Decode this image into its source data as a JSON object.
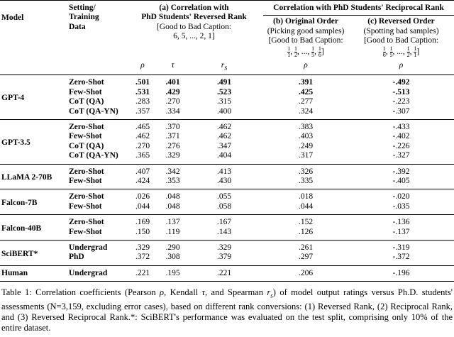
{
  "header": {
    "model": "Model",
    "setting": [
      "Setting/",
      "Training",
      "Data"
    ],
    "group_a": {
      "title": [
        "(a) Correlation with",
        "PhD Students' Reversed Rank"
      ],
      "bracket": "[Good to Bad Caption:",
      "sequence": "6, 5, ..., 2, 1]"
    },
    "group_reciprocal": "Correlation with PhD Students' Reciprocal Rank",
    "group_b": {
      "title": "(b) Original Order",
      "note": "(Picking good samples)",
      "bracket": "[Good to Bad Caption:",
      "fractions": [
        {
          "num": "1",
          "den": "1"
        },
        {
          "num": "1",
          "den": "2"
        },
        {
          "text": "..."
        },
        {
          "num": "1",
          "den": "5"
        },
        {
          "num": "1",
          "den": "6"
        }
      ],
      "close": "]"
    },
    "group_c": {
      "title": "(c) Reversed Order",
      "note": "(Spotting bad samples)",
      "bracket": "[Good to Bad Caption:",
      "fractions": [
        {
          "num": "1",
          "den": "6"
        },
        {
          "num": "1",
          "den": "5"
        },
        {
          "text": "..."
        },
        {
          "num": "1",
          "den": "2"
        },
        {
          "num": "1",
          "den": "1"
        }
      ],
      "close": "]"
    },
    "separator": ", ",
    "metrics": [
      {
        "symbol": "ρ"
      },
      {
        "symbol": "τ"
      },
      {
        "symbol": "r",
        "sub": "s"
      },
      {
        "symbol": "ρ"
      },
      {
        "symbol": "ρ"
      }
    ]
  },
  "groups": [
    {
      "model": "GPT-4",
      "rows": [
        {
          "setting": "Zero-Shot",
          "values": [
            ".501",
            ".401",
            ".491",
            ".391",
            "-.492"
          ],
          "bold": true
        },
        {
          "setting": "Few-Shot",
          "values": [
            ".531",
            ".429",
            ".523",
            ".425",
            "-.513"
          ],
          "bold": true
        },
        {
          "setting": "CoT (QA)",
          "values": [
            ".283",
            ".270",
            ".315",
            ".277",
            "-.223"
          ]
        },
        {
          "setting": "CoT (QA-YN)",
          "values": [
            ".357",
            ".334",
            ".400",
            ".324",
            "-.307"
          ]
        }
      ]
    },
    {
      "model": "GPT-3.5",
      "rows": [
        {
          "setting": "Zero-Shot",
          "values": [
            ".465",
            ".370",
            ".462",
            ".383",
            "-.433"
          ]
        },
        {
          "setting": "Few-Shot",
          "values": [
            ".462",
            ".371",
            ".462",
            ".403",
            "-.402"
          ]
        },
        {
          "setting": "CoT (QA)",
          "values": [
            ".270",
            ".276",
            ".347",
            ".249",
            "-.226"
          ]
        },
        {
          "setting": "CoT (QA-YN)",
          "values": [
            ".365",
            ".329",
            ".404",
            ".317",
            "-.327"
          ]
        }
      ]
    },
    {
      "model": "LLaMA 2-70B",
      "rows": [
        {
          "setting": "Zero-Shot",
          "values": [
            ".407",
            ".342",
            ".413",
            ".326",
            "-.392"
          ]
        },
        {
          "setting": "Few-Shot",
          "values": [
            ".424",
            ".353",
            ".430",
            ".335",
            "-.405"
          ]
        }
      ]
    },
    {
      "model": "Falcon-7B",
      "rows": [
        {
          "setting": "Zero-Shot",
          "values": [
            ".026",
            ".048",
            ".055",
            ".018",
            "-.020"
          ]
        },
        {
          "setting": "Few-Shot",
          "values": [
            ".044",
            ".048",
            ".058",
            ".044",
            "-.035"
          ]
        }
      ]
    },
    {
      "model": "Falcon-40B",
      "rows": [
        {
          "setting": "Zero-Shot",
          "values": [
            ".169",
            ".137",
            ".167",
            ".152",
            "-.136"
          ]
        },
        {
          "setting": "Few-Shot",
          "values": [
            ".150",
            ".119",
            ".143",
            ".126",
            "-.137"
          ]
        }
      ]
    },
    {
      "model": "SciBERT*",
      "rows": [
        {
          "setting": "Undergrad",
          "values": [
            ".329",
            ".290",
            ".329",
            ".261",
            "-.319"
          ]
        },
        {
          "setting": "PhD",
          "values": [
            ".372",
            ".308",
            ".379",
            ".297",
            "-.372"
          ]
        }
      ]
    },
    {
      "model": "Human",
      "rows": [
        {
          "setting": "Undergrad",
          "values": [
            ".221",
            ".195",
            ".221",
            ".206",
            "-.196"
          ]
        }
      ]
    }
  ],
  "caption": [
    {
      "text": "Table 1: Correlation coefficients (Pearson "
    },
    {
      "text": "ρ",
      "style": "italic"
    },
    {
      "text": ", Kendall "
    },
    {
      "text": "τ",
      "style": "italic"
    },
    {
      "text": ", and Spearman "
    },
    {
      "text": "r",
      "style": "italic"
    },
    {
      "text": "s",
      "style": "sub"
    },
    {
      "text": ") of model output ratings versus Ph.D. students' assessments (N=3,159, excluding error cases), based on different rank conversions: (1) Reversed Rank, (2) Reciprocal Rank, and (3) Reversed Reciprocal Rank.*: SciBERT's performance was evaluated on the test split, comprising only 10% of the entire dataset."
    }
  ]
}
